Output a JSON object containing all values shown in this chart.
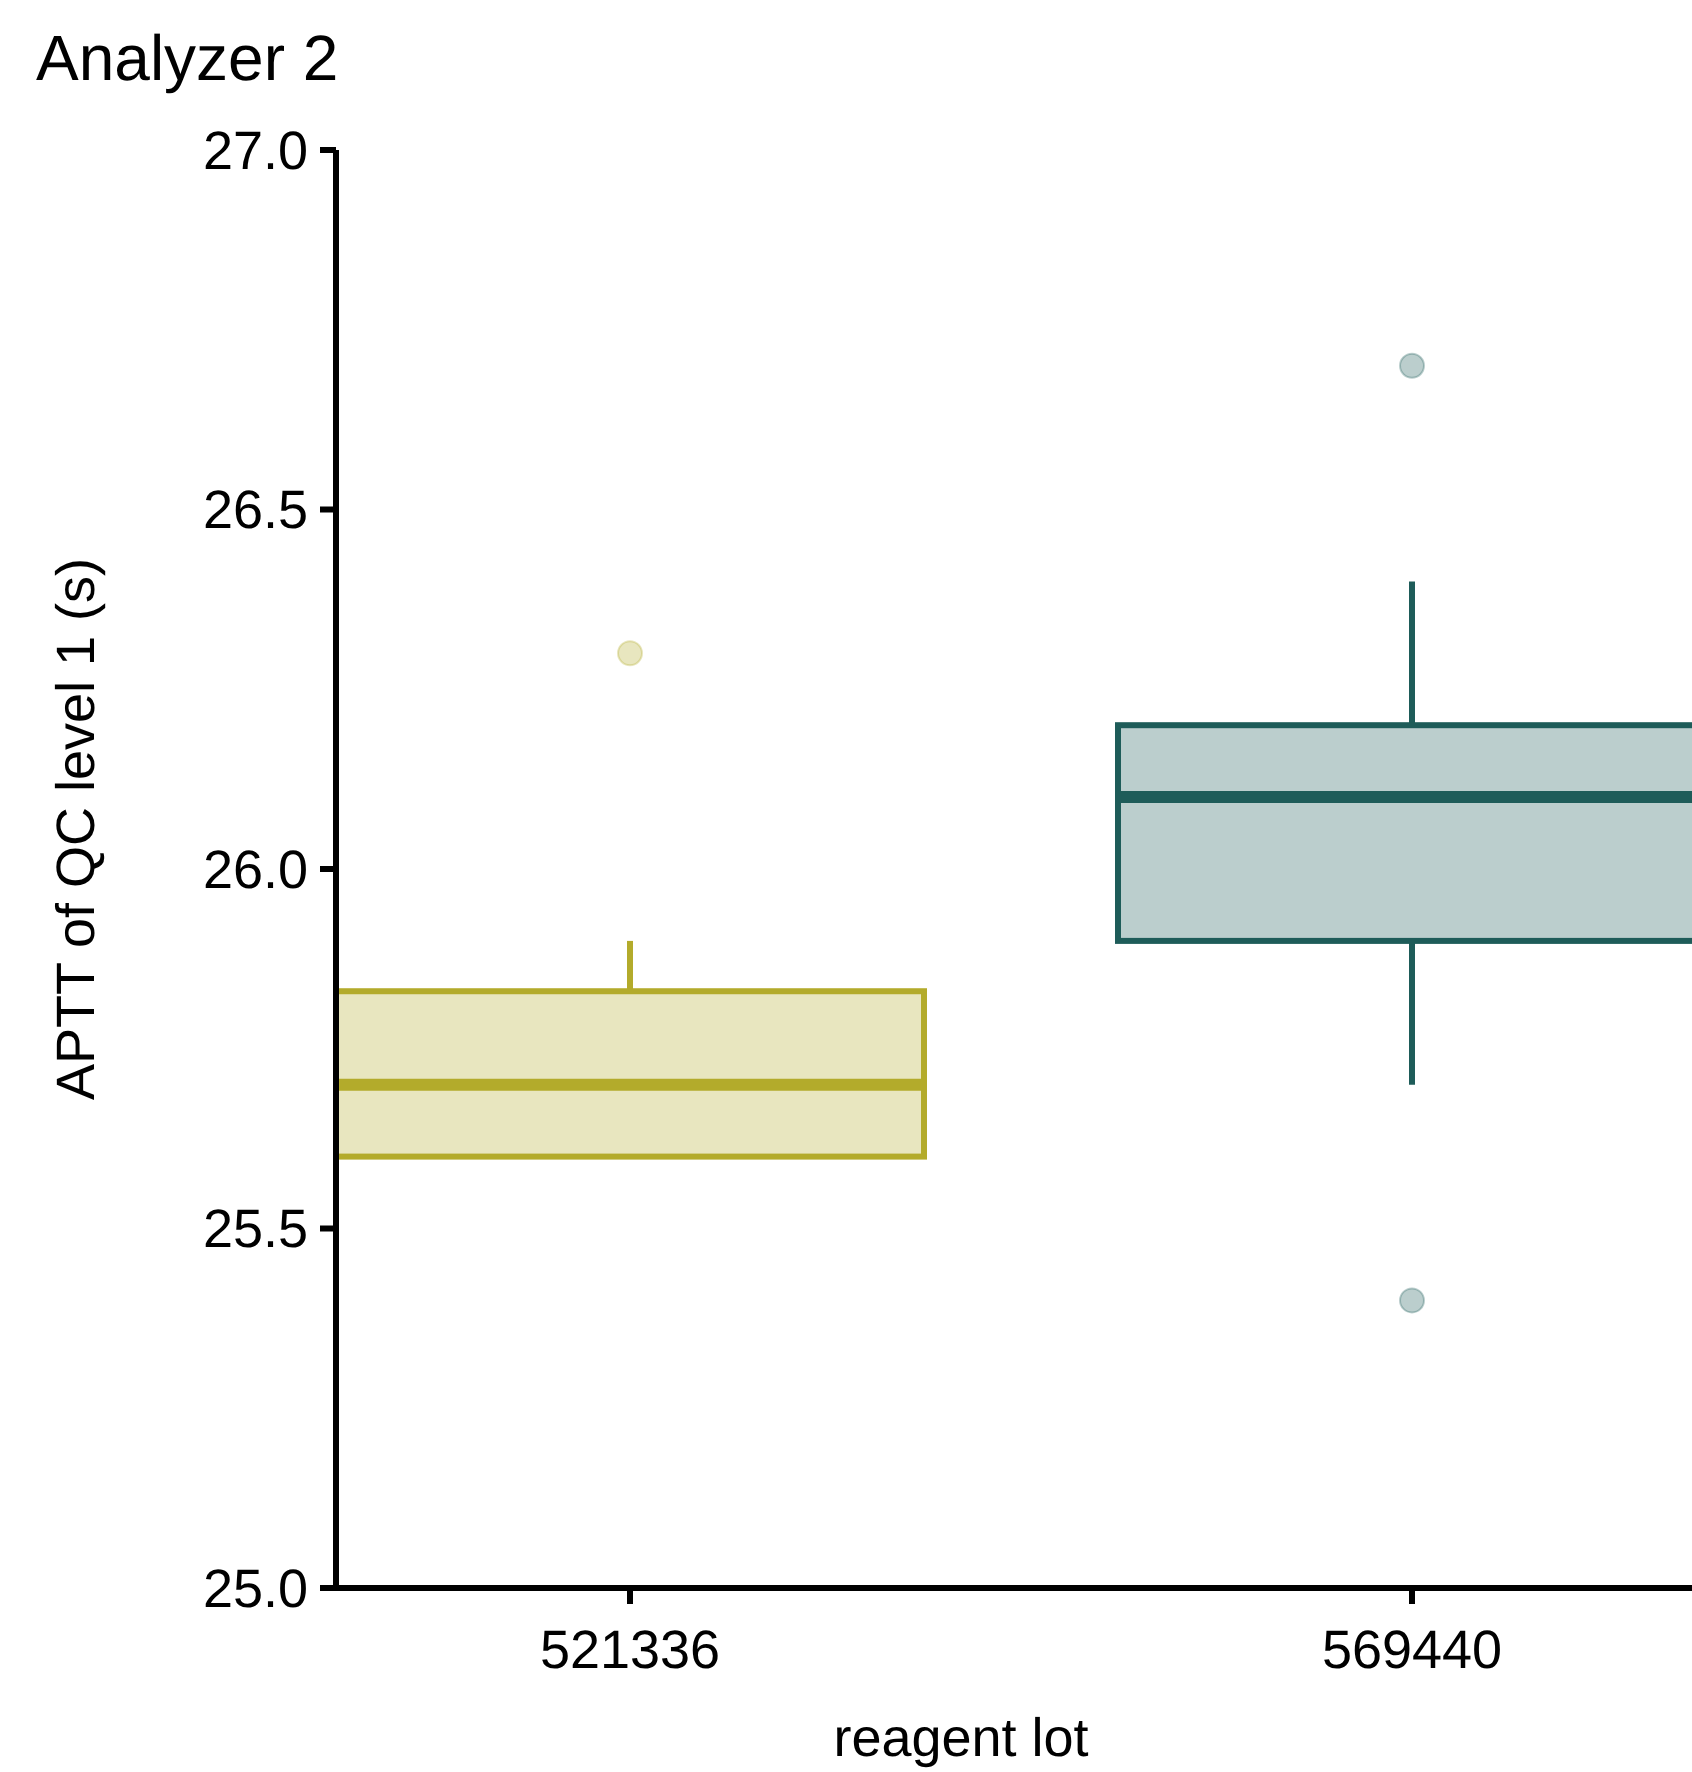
{
  "chart_data": {
    "type": "box",
    "title": "Analyzer 2",
    "xlabel": "reagent lot",
    "ylabel": "APTT of QC level 1 (s)",
    "categories": [
      "521336",
      "569440"
    ],
    "colors": [
      "#b3ab2b",
      "#1e5c59"
    ],
    "boxes": [
      {
        "low": 25.6,
        "q1": 25.6,
        "median": 25.7,
        "q3": 25.83,
        "high": 25.9,
        "outliers": [
          26.3
        ]
      },
      {
        "low": 25.7,
        "q1": 25.9,
        "median": 26.1,
        "q3": 26.2,
        "high": 26.4,
        "outliers": [
          26.7,
          25.4
        ]
      }
    ],
    "ylim": [
      25,
      27
    ],
    "yticks": [
      {
        "value": 25,
        "label": "25.0"
      },
      25.5,
      {
        "value": 26,
        "label": "26.0"
      },
      26.5,
      {
        "value": 27,
        "label": "27.0"
      }
    ]
  }
}
